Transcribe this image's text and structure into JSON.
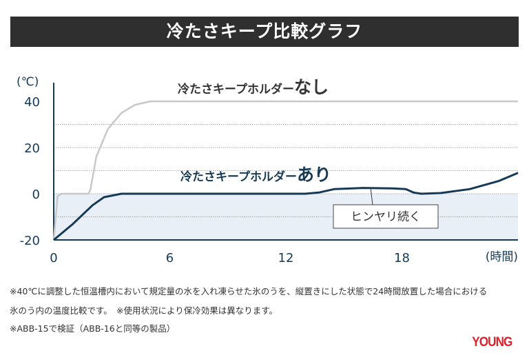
{
  "header": {
    "title": "冷たさキープ比較グラフ"
  },
  "chart_data": {
    "type": "line",
    "title": "冷たさキープ比較グラフ",
    "ylabel": "(℃)",
    "xlabel": "(時間)",
    "xlim": [
      0,
      24
    ],
    "ylim": [
      -20,
      40
    ],
    "xticks": [
      0,
      6,
      12,
      18
    ],
    "yticks": [
      40,
      20,
      0,
      -20
    ],
    "grid": true,
    "series": [
      {
        "name": "冷たさキープホルダーなし",
        "name_prefix": "冷たさキープホルダー",
        "name_suffix": "なし",
        "color": "#c8c8c8",
        "x": [
          0,
          0.2,
          0.4,
          1.8,
          1.9,
          2.2,
          2.8,
          3.5,
          4.2,
          5,
          6,
          24
        ],
        "y": [
          -20,
          -1,
          0,
          0,
          2,
          16,
          28,
          35,
          38.5,
          40,
          40,
          40
        ]
      },
      {
        "name": "冷たさキープホルダーあり",
        "name_prefix": "冷たさキープホルダー",
        "name_suffix": "あり",
        "color": "#163a56",
        "x": [
          0,
          1,
          2,
          2.6,
          3.5,
          13,
          13.7,
          14.5,
          16,
          17.5,
          18.2,
          18.6,
          19,
          20,
          21.5,
          23,
          24
        ],
        "y": [
          -20,
          -13,
          -5,
          -1.5,
          0,
          0,
          0.5,
          2,
          2.5,
          2.3,
          2,
          0.5,
          0,
          0.3,
          2,
          5.5,
          9
        ]
      }
    ],
    "annotation": "ヒンヤリ続く"
  },
  "notes": [
    "※40℃に調整した恒温槽内において規定量の水を入れ凍らせた氷のうを、縦置きにした状態で24時間放置した場合における",
    "氷のう内の温度比較です。　※使用状況により保冷効果は異なります。",
    "※ABB-15で検証（ABB-16と同等の製品）"
  ],
  "logo": "YOUNG MACHINE",
  "logo_text": "YOUNG"
}
